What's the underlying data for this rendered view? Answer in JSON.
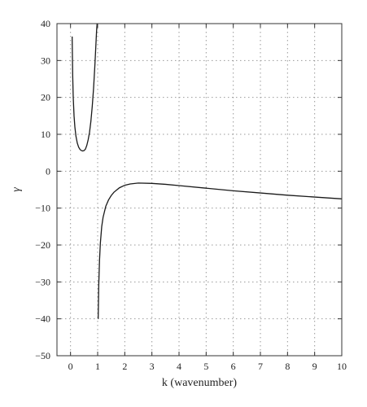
{
  "chart_data": {
    "type": "line",
    "title": "",
    "xlabel": "k (wavenumber)",
    "ylabel": "γ",
    "xlim": [
      -0.5,
      10
    ],
    "ylim": [
      -50,
      40
    ],
    "x_ticks": [
      0,
      1,
      2,
      3,
      4,
      5,
      6,
      7,
      8,
      9,
      10
    ],
    "y_ticks": [
      -50,
      -40,
      -30,
      -20,
      -10,
      0,
      10,
      20,
      30,
      40
    ],
    "grid": true,
    "legend": "none",
    "line_color": "#1a1a1a",
    "series": [
      {
        "x": [
          0.06,
          0.08,
          0.1,
          0.13,
          0.16,
          0.2,
          0.25,
          0.3,
          0.35,
          0.4,
          0.45,
          0.5,
          0.55,
          0.6,
          0.65,
          0.7,
          0.75,
          0.8,
          0.85,
          0.9,
          0.93,
          0.96,
          0.98
        ],
        "y": [
          36.5,
          26,
          20,
          15,
          12,
          9.5,
          7.6,
          6.5,
          5.9,
          5.6,
          5.5,
          5.6,
          6.0,
          7.0,
          8.5,
          10.5,
          13.5,
          17.5,
          22.5,
          29,
          33.5,
          38,
          40
        ]
      },
      {
        "x": [
          1.02,
          1.04,
          1.07,
          1.1,
          1.15,
          1.2,
          1.3,
          1.4,
          1.5,
          1.6,
          1.8,
          2.0,
          2.2,
          2.5,
          3.0,
          3.5,
          4.0,
          5.0,
          6.0,
          7.0,
          8.0,
          9.0,
          10.0
        ],
        "y": [
          -40,
          -31,
          -24,
          -19.5,
          -15,
          -12.5,
          -9.5,
          -7.8,
          -6.6,
          -5.7,
          -4.5,
          -3.8,
          -3.45,
          -3.2,
          -3.3,
          -3.55,
          -3.9,
          -4.6,
          -5.3,
          -5.9,
          -6.5,
          -7.0,
          -7.5
        ]
      }
    ]
  }
}
